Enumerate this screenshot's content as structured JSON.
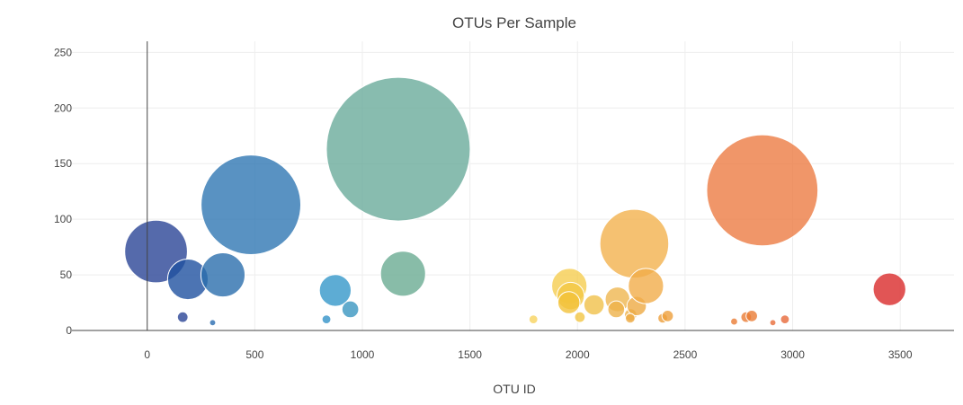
{
  "chart_data": {
    "type": "scatter",
    "title": "OTUs Per Sample",
    "xlabel": "OTU ID",
    "ylabel": "",
    "xlim": [
      -350,
      3750
    ],
    "ylim": [
      0,
      260
    ],
    "x_ticks": [
      0,
      500,
      1000,
      1500,
      2000,
      2500,
      3000,
      3500
    ],
    "y_ticks": [
      0,
      50,
      100,
      150,
      200,
      250
    ],
    "grid": true,
    "marker_size": "proportional to value",
    "points": [
      {
        "x": 41,
        "y": 71,
        "color": "#2a4596"
      },
      {
        "x": 165,
        "y": 12,
        "color": "#2a4596"
      },
      {
        "x": 189,
        "y": 46,
        "color": "#1f51a0"
      },
      {
        "x": 304,
        "y": 7,
        "color": "#2a6db0"
      },
      {
        "x": 352,
        "y": 50,
        "color": "#2b6eac"
      },
      {
        "x": 482,
        "y": 113,
        "color": "#2f77b3"
      },
      {
        "x": 833,
        "y": 10,
        "color": "#3392c8"
      },
      {
        "x": 874,
        "y": 36,
        "color": "#3497c9"
      },
      {
        "x": 944,
        "y": 19,
        "color": "#3a96c1"
      },
      {
        "x": 1167,
        "y": 163,
        "color": "#6aab9b"
      },
      {
        "x": 1189,
        "y": 51,
        "color": "#6aab92"
      },
      {
        "x": 1795,
        "y": 10,
        "color": "#f7d35f"
      },
      {
        "x": 1962,
        "y": 40,
        "color": "#f5cd50"
      },
      {
        "x": 1968,
        "y": 31,
        "color": "#f3c845"
      },
      {
        "x": 1960,
        "y": 25,
        "color": "#f2c23a"
      },
      {
        "x": 2011,
        "y": 12,
        "color": "#f3c543"
      },
      {
        "x": 2077,
        "y": 23,
        "color": "#f0c04a"
      },
      {
        "x": 2186,
        "y": 28,
        "color": "#efb650"
      },
      {
        "x": 2180,
        "y": 19,
        "color": "#eeb14a"
      },
      {
        "x": 2247,
        "y": 14,
        "color": "#eeb14a"
      },
      {
        "x": 2264,
        "y": 78,
        "color": "#f3b24e"
      },
      {
        "x": 2275,
        "y": 22,
        "color": "#eeaa43"
      },
      {
        "x": 2318,
        "y": 40,
        "color": "#f1ad4a"
      },
      {
        "x": 2245,
        "y": 11,
        "color": "#eeaa43"
      },
      {
        "x": 2396,
        "y": 11,
        "color": "#ee9f3b"
      },
      {
        "x": 2419,
        "y": 13,
        "color": "#ee9f3b"
      },
      {
        "x": 2728,
        "y": 8,
        "color": "#ea7c35"
      },
      {
        "x": 2784,
        "y": 12,
        "color": "#ea7c35"
      },
      {
        "x": 2810,
        "y": 13,
        "color": "#ea7c35"
      },
      {
        "x": 2859,
        "y": 126,
        "color": "#ec7c43"
      },
      {
        "x": 2908,
        "y": 7,
        "color": "#e86d3a"
      },
      {
        "x": 2964,
        "y": 10,
        "color": "#e7693a"
      },
      {
        "x": 3450,
        "y": 37,
        "color": "#d92b2b"
      }
    ]
  }
}
